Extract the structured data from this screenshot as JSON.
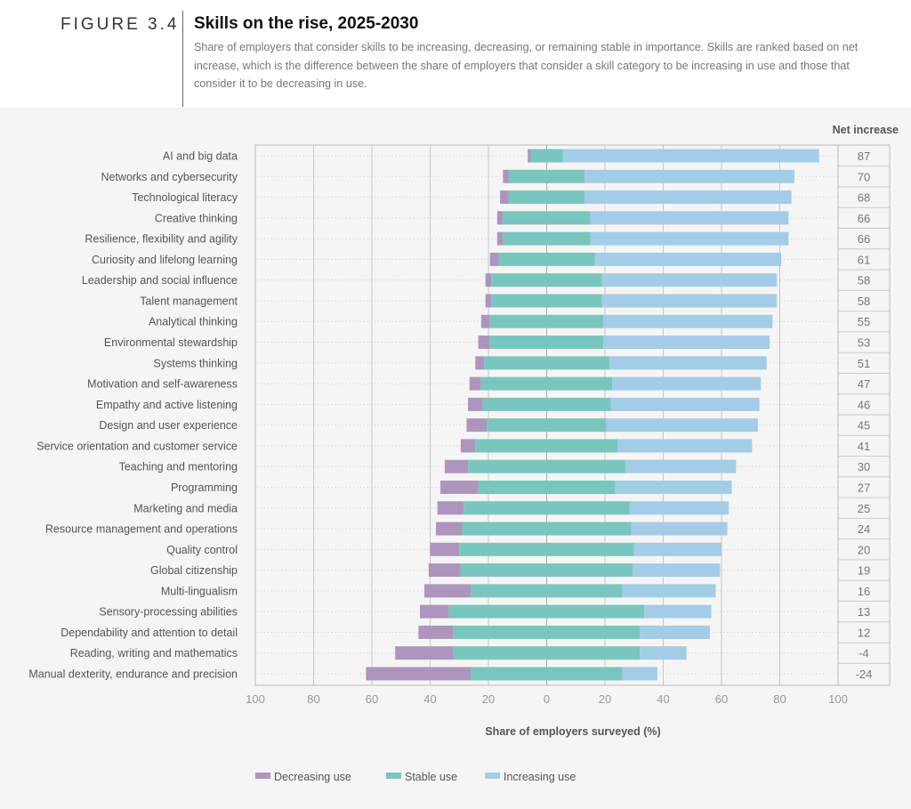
{
  "header": {
    "figure_label": "FIGURE 3.4",
    "title": "Skills on the rise, 2025-2030",
    "subtitle": "Share of employers that consider skills to be increasing, decreasing, or remaining stable in importance. Skills are ranked based on net increase, which is the difference between the share of employers that consider a skill category to be increasing in use and those that consider it to be decreasing in use."
  },
  "chart_data": {
    "type": "bar",
    "orientation": "horizontal",
    "stacked": "diverging",
    "xlabel": "Share of employers surveyed (%)",
    "xlim": [
      -100,
      100
    ],
    "xticks": [
      "100",
      "80",
      "60",
      "40",
      "20",
      "0",
      "20",
      "40",
      "60",
      "80",
      "100"
    ],
    "net_header": "Net increase",
    "grid": true,
    "legend_placement": "bottom",
    "categories": [
      "AI and big data",
      "Networks and cybersecurity",
      "Technological literacy",
      "Creative thinking",
      "Resilience, flexibility and agility",
      "Curiosity and lifelong learning",
      "Leadership and social influence",
      "Talent management",
      "Analytical thinking",
      "Environmental stewardship",
      "Systems thinking",
      "Motivation and self-awareness",
      "Empathy and active listening",
      "Design and user experience",
      "Service orientation and customer service",
      "Teaching and mentoring",
      "Programming",
      "Marketing and media",
      "Resource management and operations",
      "Quality control",
      "Global citizenship",
      "Multi-lingualism",
      "Sensory-processing abilities",
      "Dependability and attention to detail",
      "Reading, writing and mathematics",
      "Manual dexterity, endurance and precision"
    ],
    "series": [
      {
        "name": "Decreasing use",
        "color": "#ae95bd",
        "values": [
          1,
          2,
          3,
          2,
          2,
          3,
          2,
          2,
          3,
          4,
          3,
          4,
          5,
          7,
          5,
          8,
          13,
          9,
          9,
          10,
          11,
          16,
          10,
          12,
          20,
          36
        ]
      },
      {
        "name": "Stable use",
        "color": "#79c6bf",
        "values": [
          11,
          26,
          26,
          30,
          30,
          33,
          38,
          38,
          39,
          39,
          43,
          45,
          44,
          41,
          49,
          54,
          47,
          57,
          58,
          60,
          59,
          52,
          67,
          64,
          64,
          52
        ]
      },
      {
        "name": "Increasing use",
        "color": "#a3cde6",
        "values": [
          88,
          72,
          71,
          68,
          68,
          64,
          60,
          60,
          58,
          57,
          54,
          51,
          51,
          52,
          46,
          38,
          40,
          34,
          33,
          30,
          30,
          32,
          23,
          24,
          16,
          12
        ]
      }
    ],
    "net_increase": [
      "87",
      "70",
      "68",
      "66",
      "66",
      "61",
      "58",
      "58",
      "55",
      "53",
      "51",
      "47",
      "46",
      "45",
      "41",
      "30",
      "27",
      "25",
      "24",
      "20",
      "19",
      "16",
      "13",
      "12",
      "-4",
      "-24"
    ]
  }
}
